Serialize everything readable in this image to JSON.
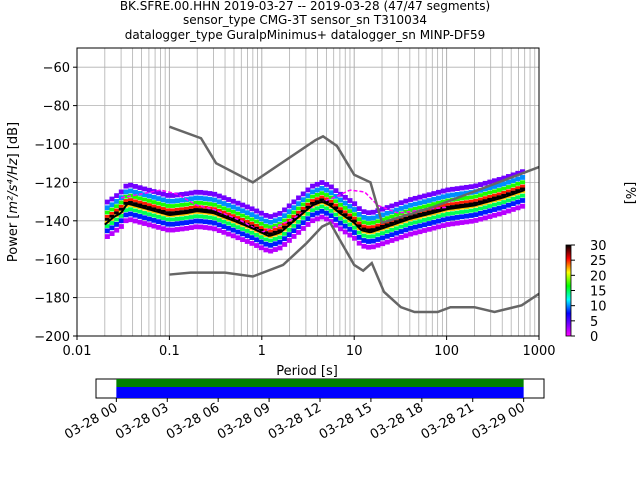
{
  "chart_data": {
    "type": "heatmap",
    "title_lines": [
      "BK.SFRE.00.HHN   2019-03-27 -- 2019-03-28  (47/47 segments)",
      "sensor_type CMG-3T sensor_sn T310034",
      "datalogger_type GuralpMinimus+ datalogger_sn MINP-DF59"
    ],
    "xlabel": "Period [s]",
    "ylabel_main": "Power [",
    "ylabel_unit": "m²/s⁴/Hz",
    "ylabel_tail": "] [dB]",
    "xscale": "log",
    "xlim": [
      0.01,
      1000
    ],
    "ylim": [
      -200,
      -50
    ],
    "x_tick_values": [
      0.01,
      0.1,
      1,
      10,
      100,
      1000
    ],
    "x_tick_labels": [
      "0.01",
      "0.1",
      "1",
      "10",
      "100",
      "1000"
    ],
    "y_ticks": [
      -60,
      -80,
      -100,
      -120,
      -140,
      -160,
      -180,
      -200
    ],
    "colorbar": {
      "label": "[%]",
      "min": 0,
      "max": 30,
      "ticks": [
        0,
        5,
        10,
        15,
        20,
        25,
        30
      ]
    },
    "noise_models": [
      {
        "name": "NHNM",
        "points": [
          [
            0.1,
            -91
          ],
          [
            0.22,
            -97
          ],
          [
            0.32,
            -110
          ],
          [
            0.8,
            -120
          ],
          [
            3.8,
            -98
          ],
          [
            4.6,
            -96
          ],
          [
            6.5,
            -101
          ],
          [
            10,
            -116
          ],
          [
            15,
            -120
          ],
          [
            20,
            -141
          ],
          [
            70,
            -133
          ],
          [
            1000,
            -112
          ]
        ]
      },
      {
        "name": "NLNM",
        "points": [
          [
            0.1,
            -168
          ],
          [
            0.17,
            -167
          ],
          [
            0.4,
            -167
          ],
          [
            0.8,
            -169
          ],
          [
            1.7,
            -163
          ],
          [
            3,
            -152
          ],
          [
            4.5,
            -143
          ],
          [
            5.5,
            -141
          ],
          [
            7,
            -150
          ],
          [
            10,
            -163
          ],
          [
            12.5,
            -166
          ],
          [
            15.5,
            -162
          ],
          [
            21,
            -177
          ],
          [
            32,
            -185
          ],
          [
            45,
            -187.5
          ],
          [
            80,
            -187.5
          ],
          [
            110,
            -185
          ],
          [
            200,
            -185
          ],
          [
            330,
            -187.5
          ],
          [
            650,
            -184
          ],
          [
            1000,
            -178
          ]
        ]
      }
    ],
    "mean_psd": [
      [
        0.02,
        -142
      ],
      [
        0.025,
        -138
      ],
      [
        0.03,
        -136
      ],
      [
        0.035,
        -131
      ],
      [
        0.05,
        -133
      ],
      [
        0.1,
        -137
      ],
      [
        0.15,
        -136
      ],
      [
        0.2,
        -135
      ],
      [
        0.3,
        -136
      ],
      [
        0.5,
        -140
      ],
      [
        0.8,
        -144
      ],
      [
        1.2,
        -148
      ],
      [
        1.6,
        -146
      ],
      [
        2.5,
        -138
      ],
      [
        3.5,
        -132
      ],
      [
        4.5,
        -130
      ],
      [
        5.5,
        -132
      ],
      [
        7,
        -136
      ],
      [
        10,
        -141
      ],
      [
        12,
        -145
      ],
      [
        15,
        -146
      ],
      [
        20,
        -144
      ],
      [
        40,
        -139
      ],
      [
        70,
        -136
      ],
      [
        100,
        -134
      ],
      [
        200,
        -132
      ],
      [
        400,
        -128
      ],
      [
        700,
        -124
      ]
    ],
    "mode_psd": [
      [
        0.02,
        -140
      ],
      [
        0.025,
        -137
      ],
      [
        0.03,
        -134
      ],
      [
        0.035,
        -130
      ],
      [
        0.05,
        -132
      ],
      [
        0.1,
        -136
      ],
      [
        0.15,
        -135
      ],
      [
        0.2,
        -134
      ],
      [
        0.3,
        -135
      ],
      [
        0.5,
        -139
      ],
      [
        0.8,
        -143
      ],
      [
        1.2,
        -147
      ],
      [
        1.6,
        -145
      ],
      [
        2.5,
        -137
      ],
      [
        3.5,
        -131
      ],
      [
        4.5,
        -129
      ],
      [
        5.5,
        -131
      ],
      [
        7,
        -135
      ],
      [
        10,
        -140
      ],
      [
        12,
        -144
      ],
      [
        15,
        -145
      ],
      [
        20,
        -143
      ],
      [
        40,
        -138
      ],
      [
        70,
        -135
      ],
      [
        100,
        -133
      ],
      [
        200,
        -131
      ],
      [
        400,
        -127
      ],
      [
        700,
        -123
      ]
    ],
    "outlier_psd": [
      [
        0.03,
        -128
      ],
      [
        0.05,
        -126
      ],
      [
        0.08,
        -124
      ],
      [
        0.12,
        -126
      ],
      [
        0.2,
        -132
      ],
      [
        0.3,
        -134
      ],
      [
        0.6,
        -140
      ],
      [
        1,
        -146
      ],
      [
        2,
        -140
      ],
      [
        4,
        -131
      ],
      [
        6,
        -128
      ],
      [
        9,
        -124
      ],
      [
        13,
        -125
      ],
      [
        18,
        -132
      ],
      [
        30,
        -136
      ],
      [
        60,
        -134
      ],
      [
        100,
        -133
      ]
    ],
    "histogram_bands": [
      {
        "pct": 30,
        "offset": 0,
        "width": 1.5
      },
      {
        "pct": 25,
        "offset": 1.5,
        "width": 1.5
      },
      {
        "pct": 22,
        "offset": -1.5,
        "width": 1.5
      },
      {
        "pct": 17,
        "offset": 3.5,
        "width": 2
      },
      {
        "pct": 15,
        "offset": -3.5,
        "width": 2
      },
      {
        "pct": 10,
        "offset": 6,
        "width": 2.5
      },
      {
        "pct": 8,
        "offset": -6,
        "width": 2.5
      },
      {
        "pct": 4,
        "offset": 9,
        "width": 2.5
      },
      {
        "pct": 2,
        "offset": -9,
        "width": 2.5
      }
    ],
    "timeline": {
      "tick_labels": [
        "03-28 00",
        "03-28 03",
        "03-28 06",
        "03-28 09",
        "03-28 12",
        "03-28 15",
        "03-28 18",
        "03-28 21",
        "03-29 00"
      ],
      "start_hour": -1.2,
      "end_hour": 25.2,
      "data_start_hour": 0,
      "data_end_hour": 24,
      "colors": {
        "top": "#008000",
        "bottom": "#0000ff"
      }
    }
  }
}
